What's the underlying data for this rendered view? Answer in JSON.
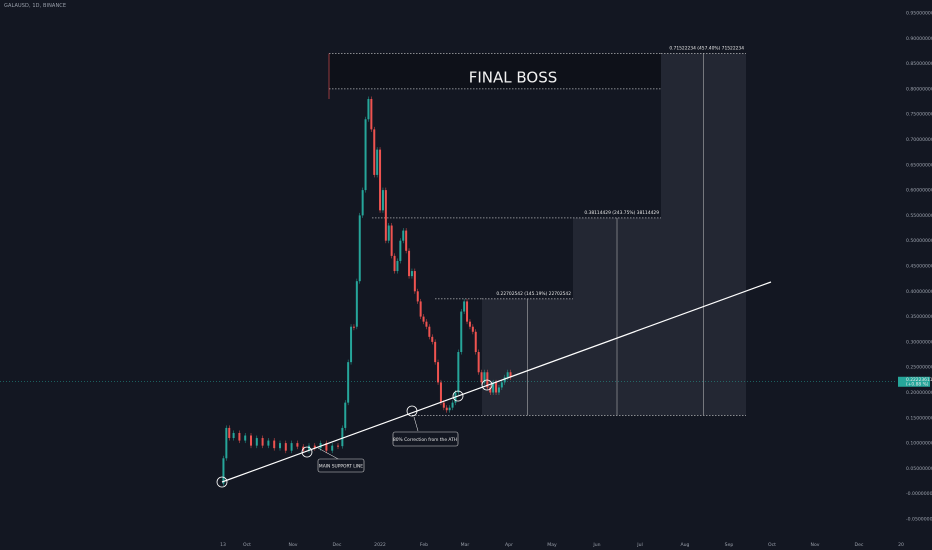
{
  "symbol_text": "GALAUSD, 1D, BINANCE",
  "chart_data": {
    "type": "line",
    "title": "FINAL BOSS",
    "xlabel": "",
    "ylabel": "",
    "ylim": [
      -0.05,
      0.95
    ],
    "y_ticks": [
      "0.95000000",
      "0.90000000",
      "0.85000000",
      "0.80000000",
      "0.75000000",
      "0.70000000",
      "0.65000000",
      "0.60000000",
      "0.55000000",
      "0.50000000",
      "0.45000000",
      "0.40000000",
      "0.35000000",
      "0.30000000",
      "0.25000000",
      "0.20000000",
      "0.15000000",
      "0.10000000",
      "0.05000000",
      "-0.00000000",
      "-0.05000000"
    ],
    "x_ticks": [
      "13",
      "Oct",
      "Nov",
      "Dec",
      "2022",
      "Feb",
      "Mar",
      "Apr",
      "May",
      "Jun",
      "Jul",
      "Aug",
      "Sep",
      "Oct",
      "Nov",
      "Dec",
      "20"
    ],
    "current_price": {
      "value": "0.22223611",
      "sub": "(+0.88 %)",
      "level": 0.2222
    },
    "price_path": [
      [
        0.0,
        0.02
      ],
      [
        0.01,
        0.07
      ],
      [
        0.02,
        0.13
      ],
      [
        0.03,
        0.11
      ],
      [
        0.05,
        0.12
      ],
      [
        0.07,
        0.105
      ],
      [
        0.09,
        0.115
      ],
      [
        0.11,
        0.095
      ],
      [
        0.13,
        0.11
      ],
      [
        0.15,
        0.095
      ],
      [
        0.17,
        0.105
      ],
      [
        0.19,
        0.09
      ],
      [
        0.21,
        0.1
      ],
      [
        0.23,
        0.085
      ],
      [
        0.25,
        0.1
      ],
      [
        0.27,
        0.093
      ],
      [
        0.29,
        0.085
      ],
      [
        0.31,
        0.095
      ],
      [
        0.33,
        0.09
      ],
      [
        0.35,
        0.1
      ],
      [
        0.37,
        0.085
      ],
      [
        0.39,
        0.095
      ],
      [
        0.41,
        0.094
      ],
      [
        0.42,
        0.13
      ],
      [
        0.43,
        0.18
      ],
      [
        0.44,
        0.26
      ],
      [
        0.45,
        0.33
      ],
      [
        0.46,
        0.33
      ],
      [
        0.47,
        0.42
      ],
      [
        0.48,
        0.55
      ],
      [
        0.49,
        0.6
      ],
      [
        0.5,
        0.74
      ],
      [
        0.51,
        0.78
      ],
      [
        0.52,
        0.72
      ],
      [
        0.53,
        0.63
      ],
      [
        0.54,
        0.68
      ],
      [
        0.55,
        0.56
      ],
      [
        0.56,
        0.6
      ],
      [
        0.57,
        0.5
      ],
      [
        0.58,
        0.53
      ],
      [
        0.59,
        0.47
      ],
      [
        0.6,
        0.44
      ],
      [
        0.61,
        0.46
      ],
      [
        0.62,
        0.5
      ],
      [
        0.63,
        0.52
      ],
      [
        0.64,
        0.48
      ],
      [
        0.65,
        0.43
      ],
      [
        0.66,
        0.44
      ],
      [
        0.67,
        0.4
      ],
      [
        0.68,
        0.38
      ],
      [
        0.69,
        0.35
      ],
      [
        0.7,
        0.34
      ],
      [
        0.71,
        0.33
      ],
      [
        0.72,
        0.31
      ],
      [
        0.73,
        0.3
      ],
      [
        0.74,
        0.26
      ],
      [
        0.75,
        0.22
      ],
      [
        0.76,
        0.18
      ],
      [
        0.77,
        0.17
      ],
      [
        0.78,
        0.165
      ],
      [
        0.79,
        0.17
      ],
      [
        0.8,
        0.18
      ],
      [
        0.81,
        0.2
      ],
      [
        0.82,
        0.28
      ],
      [
        0.83,
        0.36
      ],
      [
        0.84,
        0.38
      ],
      [
        0.85,
        0.34
      ],
      [
        0.86,
        0.33
      ],
      [
        0.87,
        0.32
      ],
      [
        0.88,
        0.28
      ],
      [
        0.89,
        0.24
      ],
      [
        0.9,
        0.22
      ],
      [
        0.91,
        0.24
      ],
      [
        0.92,
        0.21
      ],
      [
        0.93,
        0.2
      ],
      [
        0.94,
        0.22
      ],
      [
        0.95,
        0.2
      ],
      [
        0.96,
        0.21
      ],
      [
        0.97,
        0.22
      ],
      [
        0.98,
        0.23
      ],
      [
        0.99,
        0.24
      ],
      [
        1.0,
        0.23
      ]
    ],
    "support_line": {
      "label": "MAIN SUPPORT LINE",
      "from": 0.02,
      "to": 0.42
    },
    "correction_note": "80% Correction from the ATH",
    "ath_high": 0.87,
    "boss_top": 0.87,
    "boss_bottom": 0.8,
    "targets": [
      {
        "label": "0.22702542 (145.19%) 22702542",
        "top": 0.385
      },
      {
        "label": "0.38114429 (243.75%) 38114429",
        "top": 0.545
      },
      {
        "label": "0.71522234 (457.40%) 71522234",
        "top": 0.87
      }
    ],
    "base_level": 0.155,
    "touch_points": 5,
    "grid": false,
    "colors": {
      "up": "#26a69a",
      "down": "#ef5350",
      "line": "#ffffff",
      "price_tag": "#26a69a",
      "box_fill": "#2a2e39"
    }
  }
}
